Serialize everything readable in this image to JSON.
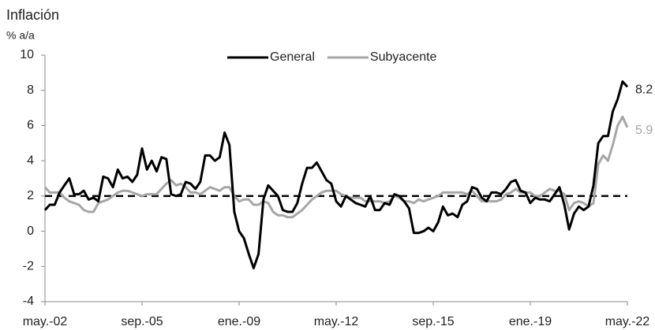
{
  "chart_data": {
    "type": "line",
    "title": "Inflación",
    "y_label": "% a/a",
    "categories": [
      "may.-02",
      null,
      null,
      null,
      null,
      null,
      null,
      null,
      null,
      null,
      null,
      null,
      null,
      null,
      null,
      null,
      null,
      null,
      null,
      null,
      "sep.-05",
      null,
      null,
      null,
      null,
      null,
      null,
      null,
      null,
      null,
      null,
      null,
      null,
      null,
      null,
      null,
      null,
      null,
      null,
      null,
      "ene.-09",
      null,
      null,
      null,
      null,
      null,
      null,
      null,
      null,
      null,
      null,
      null,
      null,
      null,
      null,
      null,
      null,
      null,
      null,
      null,
      "may.-12",
      null,
      null,
      null,
      null,
      null,
      null,
      null,
      null,
      null,
      null,
      null,
      null,
      null,
      null,
      null,
      null,
      null,
      null,
      null,
      "sep.-15",
      null,
      null,
      null,
      null,
      null,
      null,
      null,
      null,
      null,
      null,
      null,
      null,
      null,
      null,
      null,
      null,
      null,
      null,
      null,
      "ene.-19",
      null,
      null,
      null,
      null,
      null,
      null,
      null,
      null,
      null,
      null,
      null,
      null,
      null,
      null,
      null,
      null,
      null,
      null,
      null,
      "may.-22"
    ],
    "series": [
      {
        "name": "General",
        "color": "#000000",
        "values": [
          1.2,
          1.5,
          1.5,
          2.2,
          2.6,
          3.0,
          2.1,
          2.1,
          2.3,
          1.8,
          1.9,
          1.7,
          3.1,
          3.0,
          2.5,
          3.5,
          3.0,
          3.1,
          2.8,
          3.2,
          4.7,
          3.5,
          4.0,
          3.4,
          4.2,
          4.1,
          2.1,
          2.0,
          2.1,
          2.8,
          2.7,
          2.4,
          2.8,
          4.3,
          4.3,
          4.0,
          4.2,
          5.6,
          4.9,
          1.1,
          0.0,
          -0.4,
          -1.3,
          -2.1,
          -1.3,
          1.8,
          2.6,
          2.3,
          2.0,
          1.2,
          1.1,
          1.1,
          1.6,
          2.7,
          3.6,
          3.6,
          3.9,
          3.4,
          2.9,
          2.7,
          1.7,
          1.4,
          2.0,
          1.8,
          1.6,
          1.5,
          1.4,
          2.0,
          1.2,
          1.2,
          1.6,
          1.5,
          2.1,
          2.0,
          1.7,
          1.3,
          -0.1,
          -0.1,
          0.0,
          0.2,
          0.0,
          0.5,
          1.4,
          0.9,
          1.0,
          0.8,
          1.5,
          1.7,
          2.5,
          2.4,
          1.9,
          1.7,
          2.2,
          2.2,
          2.1,
          2.4,
          2.8,
          2.9,
          2.3,
          2.2,
          1.6,
          1.9,
          1.8,
          1.8,
          1.7,
          2.1,
          2.5,
          1.5,
          0.1,
          1.0,
          1.4,
          1.2,
          1.4,
          2.6,
          5.0,
          5.4,
          5.4,
          6.8,
          7.5,
          8.5,
          8.2
        ]
      },
      {
        "name": "Subyacente",
        "color": "#a6a6a6",
        "values": [
          2.5,
          2.2,
          2.2,
          2.2,
          1.9,
          1.7,
          1.6,
          1.5,
          1.2,
          1.1,
          1.1,
          1.6,
          1.7,
          1.8,
          2.0,
          2.2,
          2.3,
          2.3,
          2.2,
          2.1,
          2.0,
          2.1,
          2.1,
          2.1,
          2.4,
          2.7,
          2.9,
          2.6,
          2.7,
          2.5,
          2.2,
          2.2,
          2.1,
          2.3,
          2.5,
          2.4,
          2.3,
          2.5,
          2.5,
          2.0,
          1.7,
          1.8,
          1.8,
          1.5,
          1.5,
          1.7,
          1.6,
          1.1,
          0.9,
          0.9,
          0.8,
          0.8,
          1.0,
          1.2,
          1.5,
          1.8,
          2.0,
          2.2,
          2.3,
          2.3,
          2.3,
          2.1,
          2.0,
          1.9,
          1.9,
          1.9,
          1.7,
          1.7,
          1.7,
          1.7,
          1.6,
          1.7,
          2.0,
          1.9,
          1.7,
          1.7,
          1.6,
          1.8,
          1.7,
          1.8,
          1.9,
          2.0,
          2.2,
          2.2,
          2.2,
          2.2,
          2.2,
          2.1,
          2.3,
          2.0,
          1.7,
          1.7,
          1.7,
          1.7,
          1.8,
          2.1,
          2.2,
          2.4,
          2.2,
          2.2,
          2.2,
          2.0,
          2.0,
          2.2,
          2.4,
          2.3,
          2.3,
          2.1,
          1.2,
          1.6,
          1.7,
          1.6,
          1.4,
          1.6,
          3.8,
          4.3,
          4.0,
          4.9,
          6.0,
          6.5,
          5.9
        ]
      }
    ],
    "target_line": 2,
    "ylim": [
      -4,
      10
    ],
    "yticks": [
      -4,
      -2,
      0,
      2,
      4,
      6,
      8,
      10
    ]
  }
}
